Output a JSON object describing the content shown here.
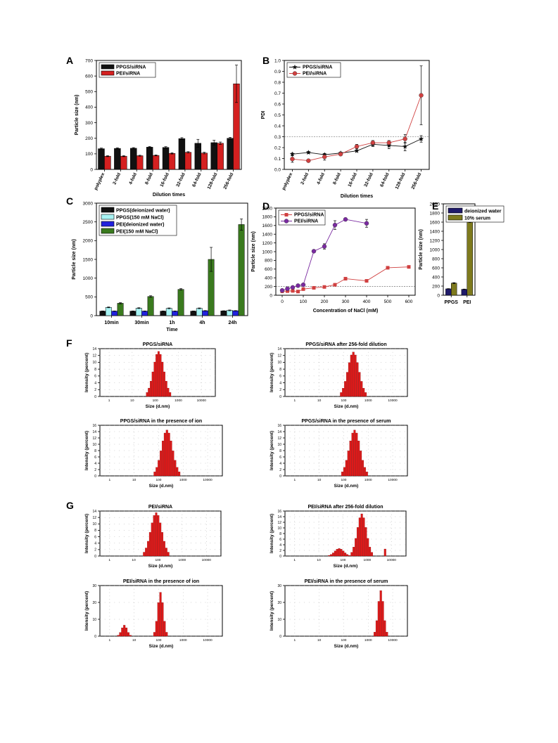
{
  "panel_labels": [
    "A",
    "B",
    "C",
    "D",
    "E",
    "F",
    "G"
  ],
  "colors": {
    "black": "#111111",
    "red": "#d42020",
    "cyan": "#a8f4f4",
    "blue": "#2222dd",
    "green": "#3a7a1e",
    "navy": "#1f1a6a",
    "olive": "#7e7a1e",
    "line_red": "#d04040",
    "purple": "#7a2aa0",
    "bar_red": "#dd1a1a"
  },
  "chart_data": [
    {
      "id": "A",
      "type": "bar",
      "xlabel": "Dilution times",
      "ylabel": "Particle size (nm)",
      "ylim": [
        0,
        700
      ],
      "yticks": [
        0,
        100,
        200,
        300,
        400,
        500,
        600,
        700
      ],
      "legend_position": "top-left",
      "categories": [
        "polyplex",
        "2-fold",
        "4-fold",
        "8-fold",
        "16-fold",
        "32-fold",
        "64-fold",
        "128-fold",
        "256-fold"
      ],
      "series": [
        {
          "name": "PPGS/siRNA",
          "color": "#111111",
          "values": [
            133,
            135,
            136,
            143,
            141,
            198,
            168,
            172,
            200
          ],
          "errors": [
            4,
            4,
            4,
            4,
            5,
            6,
            25,
            15,
            6
          ]
        },
        {
          "name": "PEI/siRNA",
          "color": "#d42020",
          "values": [
            85,
            85,
            88,
            90,
            103,
            110,
            105,
            168,
            550
          ],
          "errors": [
            3,
            3,
            3,
            3,
            4,
            4,
            5,
            8,
            120
          ]
        }
      ]
    },
    {
      "id": "B",
      "type": "line",
      "xlabel": "Dilution times",
      "ylabel": "PDI",
      "ylim": [
        0,
        1.0
      ],
      "yticks": [
        "0.0",
        "0.1",
        "0.2",
        "0.3",
        "0.4",
        "0.5",
        "0.6",
        "0.7",
        "0.8",
        "0.9",
        "1.0"
      ],
      "reference_line": 0.3,
      "legend_position": "top-left",
      "categories": [
        "polyplex",
        "2-fold",
        "4-fold",
        "8-fold",
        "16-fold",
        "32-fold",
        "64-fold",
        "128-fold",
        "256-fold"
      ],
      "series": [
        {
          "name": "PPGS/siRNA",
          "color": "#111111",
          "marker": "star",
          "values": [
            0.14,
            0.155,
            0.135,
            0.15,
            0.17,
            0.23,
            0.22,
            0.21,
            0.28
          ],
          "errors": [
            0.01,
            0.01,
            0.01,
            0.01,
            0.01,
            0.02,
            0.03,
            0.04,
            0.03
          ]
        },
        {
          "name": "PEI/siRNA",
          "color": "#d04040",
          "marker": "circle",
          "values": [
            0.095,
            0.08,
            0.115,
            0.14,
            0.21,
            0.245,
            0.245,
            0.28,
            0.68
          ],
          "errors": [
            0.03,
            0.01,
            0.03,
            0.01,
            0.02,
            0.02,
            0.02,
            0.04,
            0.27
          ]
        }
      ]
    },
    {
      "id": "C",
      "type": "bar",
      "xlabel": "Time",
      "ylabel": "Particle size (nm)",
      "ylim": [
        0,
        3000
      ],
      "yticks": [
        0,
        500,
        1000,
        1500,
        2000,
        2500,
        3000
      ],
      "legend_position": "top-left",
      "categories": [
        "10min",
        "30min",
        "1h",
        "4h",
        "24h"
      ],
      "series": [
        {
          "name": "PPGS(deionized water)",
          "color": "#111111",
          "values": [
            120,
            120,
            120,
            120,
            125
          ],
          "errors": [
            5,
            5,
            5,
            5,
            5
          ]
        },
        {
          "name": "PPGS(150 mM NaCl)",
          "color": "#a8f4f4",
          "values": [
            220,
            200,
            195,
            195,
            140
          ],
          "errors": [
            10,
            10,
            10,
            10,
            10
          ]
        },
        {
          "name": "PEI(deionized water)",
          "color": "#2222dd",
          "values": [
            120,
            120,
            120,
            130,
            130
          ],
          "errors": [
            5,
            5,
            5,
            5,
            5
          ]
        },
        {
          "name": "PEI(150 mM NaCl)",
          "color": "#3a7a1e",
          "values": [
            330,
            510,
            700,
            1500,
            2430
          ],
          "errors": [
            15,
            20,
            20,
            320,
            150
          ]
        }
      ]
    },
    {
      "id": "D",
      "type": "line",
      "xlabel": "Concentration of NaCl (mM)",
      "ylabel": "Particle size (nm)",
      "xlim": [
        -30,
        630
      ],
      "xticks": [
        0,
        100,
        200,
        300,
        400,
        500,
        600
      ],
      "ylim": [
        0,
        2000
      ],
      "yticks": [
        0,
        200,
        400,
        600,
        800,
        1000,
        1200,
        1400,
        1600,
        1800,
        2000
      ],
      "reference_line": 200,
      "legend_position": "top-left",
      "series": [
        {
          "name": "PPGS/siRNA",
          "color": "#d04040",
          "marker": "square",
          "x": [
            0,
            25,
            50,
            75,
            100,
            150,
            200,
            250,
            300,
            400,
            500,
            600
          ],
          "values": [
            90,
            95,
            100,
            85,
            140,
            170,
            190,
            240,
            380,
            330,
            630,
            650
          ],
          "errors": [
            15,
            15,
            15,
            20,
            20,
            20,
            15,
            20,
            30,
            20,
            20,
            30
          ]
        },
        {
          "name": "PEI/siRNA",
          "color": "#7a2aa0",
          "marker": "circle",
          "x": [
            0,
            25,
            50,
            75,
            100,
            150,
            200,
            250,
            300,
            400
          ],
          "values": [
            110,
            150,
            180,
            220,
            240,
            1010,
            1120,
            1610,
            1740,
            1650
          ],
          "errors": [
            20,
            30,
            30,
            20,
            20,
            30,
            60,
            100,
            30,
            90
          ]
        }
      ]
    },
    {
      "id": "E",
      "type": "bar",
      "xlabel": "",
      "ylabel": "Particle size (nm)",
      "ylim": [
        0,
        2000
      ],
      "yticks": [
        0,
        200,
        400,
        600,
        800,
        1000,
        1200,
        1400,
        1600,
        1800,
        2000
      ],
      "legend_position": "top-left",
      "categories": [
        "PPGS",
        "PEI"
      ],
      "series": [
        {
          "name": "deionized water",
          "color": "#1f1a6a",
          "values": [
            140,
            130
          ],
          "errors": [
            5,
            5
          ]
        },
        {
          "name": "10% serum",
          "color": "#7e7a1e",
          "values": [
            265,
            1660
          ],
          "errors": [
            10,
            70
          ]
        }
      ]
    },
    {
      "id": "F1",
      "group": "F",
      "type": "bar",
      "title": "PPGS/siRNA",
      "xlabel": "Size (d.nm)",
      "ylabel": "Intensity (percent)",
      "x_scale": "log",
      "xlim": [
        0.4,
        40000
      ],
      "xticks": [
        "1",
        "10",
        "100",
        "1000",
        "10000"
      ],
      "ylim": [
        0,
        14
      ],
      "yticks": [
        0,
        2,
        4,
        6,
        8,
        10,
        12,
        14
      ],
      "peaks": [
        {
          "center": 140,
          "height": 13.2,
          "bins": 13
        }
      ]
    },
    {
      "id": "F2",
      "group": "F",
      "type": "bar",
      "title": "PPGS/siRNA after 256-fold dilution",
      "xlabel": "Size (d.nm)",
      "ylabel": "Intensity (percent)",
      "x_scale": "log",
      "xlim": [
        0.4,
        40000
      ],
      "xticks": [
        "1",
        "10",
        "100",
        "1000",
        "10000"
      ],
      "ylim": [
        0,
        14
      ],
      "yticks": [
        0,
        2,
        4,
        6,
        8,
        10,
        12,
        14
      ],
      "peaks": [
        {
          "center": 250,
          "height": 13,
          "bins": 13
        }
      ]
    },
    {
      "id": "F3",
      "group": "F",
      "type": "bar",
      "title": "PPGS/siRNA in the presence of ion",
      "xlabel": "Size (d.nm)",
      "ylabel": "Intensity (percent)",
      "x_scale": "log",
      "xlim": [
        0.4,
        40000
      ],
      "xticks": [
        "1",
        "10",
        "100",
        "1000",
        "10000"
      ],
      "ylim": [
        0,
        16
      ],
      "yticks": [
        0,
        2,
        4,
        6,
        8,
        10,
        12,
        14,
        16
      ],
      "peaks": [
        {
          "center": 220,
          "height": 14.5,
          "bins": 13
        }
      ]
    },
    {
      "id": "F4",
      "group": "F",
      "type": "bar",
      "title": "PPGS/siRNA in the presence of serum",
      "xlabel": "Size (d.nm)",
      "ylabel": "Intensity (percent)",
      "x_scale": "log",
      "xlim": [
        0.4,
        40000
      ],
      "xticks": [
        "1",
        "10",
        "100",
        "1000",
        "10000"
      ],
      "ylim": [
        0,
        16
      ],
      "yticks": [
        0,
        2,
        4,
        6,
        8,
        10,
        12,
        14,
        16
      ],
      "peaks": [
        {
          "center": 280,
          "height": 14.5,
          "bins": 13
        }
      ]
    },
    {
      "id": "G1",
      "group": "G",
      "type": "bar",
      "title": "PEI/siRNA",
      "xlabel": "Size (d.nm)",
      "ylabel": "Intensity (percent)",
      "x_scale": "log",
      "xlim": [
        0.4,
        40000
      ],
      "xticks": [
        "1",
        "10",
        "100",
        "1000",
        "10000"
      ],
      "ylim": [
        0,
        14
      ],
      "yticks": [
        0,
        2,
        4,
        6,
        8,
        10,
        12,
        14
      ],
      "peaks": [
        {
          "center": 85,
          "height": 13.5,
          "bins": 13
        }
      ]
    },
    {
      "id": "G2",
      "group": "G",
      "type": "bar",
      "title": "PEI/siRNA after 256-fold dilution",
      "xlabel": "Size (d.nm)",
      "ylabel": "Intensity (percent)",
      "x_scale": "log",
      "xlim": [
        0.4,
        40000
      ],
      "xticks": [
        "1",
        "10",
        "100",
        "1000",
        "10000"
      ],
      "ylim": [
        0,
        16
      ],
      "yticks": [
        0,
        2,
        4,
        6,
        8,
        10,
        12,
        14,
        16
      ],
      "peaks": [
        {
          "center": 70,
          "height": 2.7,
          "bins": 11
        },
        {
          "center": 600,
          "height": 15,
          "bins": 11
        },
        {
          "center": 5500,
          "height": 2.5,
          "bins": 1
        }
      ]
    },
    {
      "id": "G3",
      "group": "G",
      "type": "bar",
      "title": "PEI/siRNA in the presence of ion",
      "xlabel": "Size (d.nm)",
      "ylabel": "Intensity (percent)",
      "x_scale": "log",
      "xlim": [
        0.4,
        40000
      ],
      "xticks": [
        "1",
        "10",
        "100",
        "1000",
        "10000"
      ],
      "ylim": [
        0,
        30
      ],
      "yticks": [
        0,
        10,
        20,
        30
      ],
      "peaks": [
        {
          "center": 4,
          "height": 6.5,
          "bins": 7
        },
        {
          "center": 120,
          "height": 26,
          "bins": 7
        }
      ]
    },
    {
      "id": "G4",
      "group": "G",
      "type": "bar",
      "title": "PEI/siRNA in the presence of serum",
      "xlabel": "Size (d.nm)",
      "ylabel": "Intensity (percent)",
      "x_scale": "log",
      "xlim": [
        0.4,
        40000
      ],
      "xticks": [
        "1",
        "10",
        "100",
        "1000",
        "10000"
      ],
      "ylim": [
        0,
        30
      ],
      "yticks": [
        0,
        10,
        20,
        30
      ],
      "peaks": [
        {
          "center": 3300,
          "height": 27,
          "bins": 7
        }
      ]
    }
  ]
}
